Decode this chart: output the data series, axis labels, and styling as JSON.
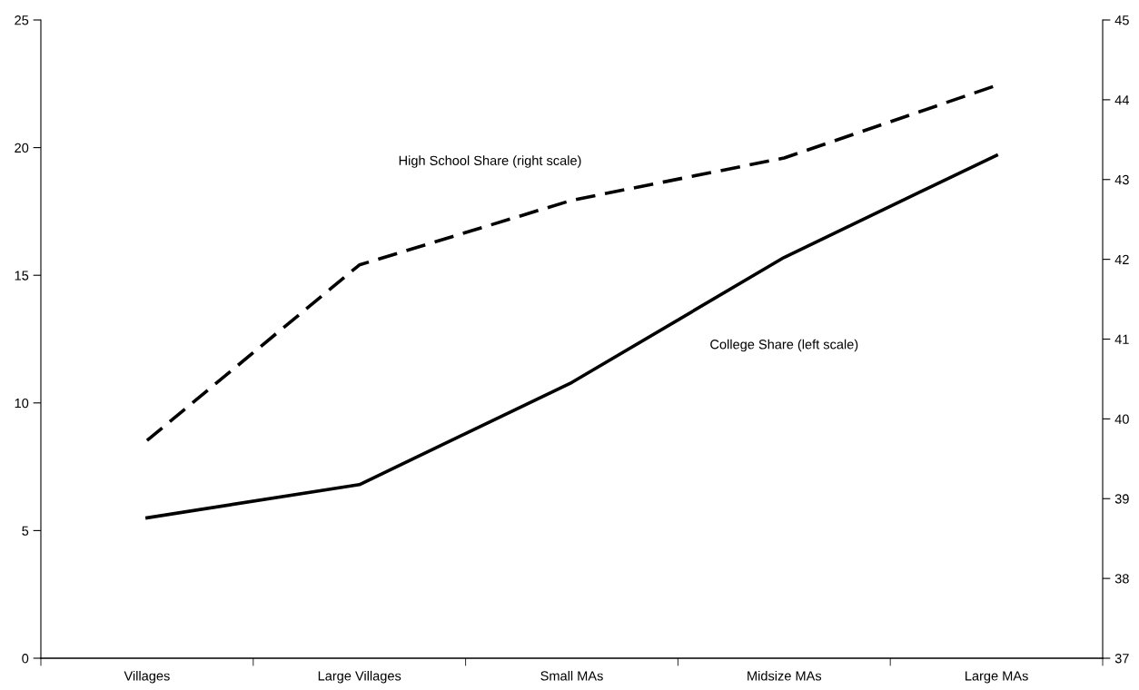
{
  "chart_data": {
    "type": "line",
    "categories": [
      "Villages",
      "Large Villages",
      "Small MAs",
      "Midsize MAs",
      "Large MAs"
    ],
    "series": [
      {
        "name": "High School Share (right scale)",
        "color": "#000000",
        "axis": "y2",
        "line_style": "dashed",
        "values": [
          39.73,
          41.93,
          42.74,
          43.27,
          44.18
        ]
      },
      {
        "name": "College Share (left scale)",
        "color": "#000000",
        "line_style": "solid",
        "values": [
          5.5,
          6.8,
          10.8,
          15.7,
          19.7
        ]
      }
    ],
    "ylim": [
      0,
      25
    ],
    "yticks": [
      0,
      5,
      10,
      15,
      20,
      25
    ],
    "y2lim": [
      37,
      45
    ],
    "y2ticks": [
      37,
      38,
      39,
      40,
      41,
      42,
      43,
      44,
      45
    ],
    "grid": false,
    "legend": false,
    "marker": "none"
  }
}
